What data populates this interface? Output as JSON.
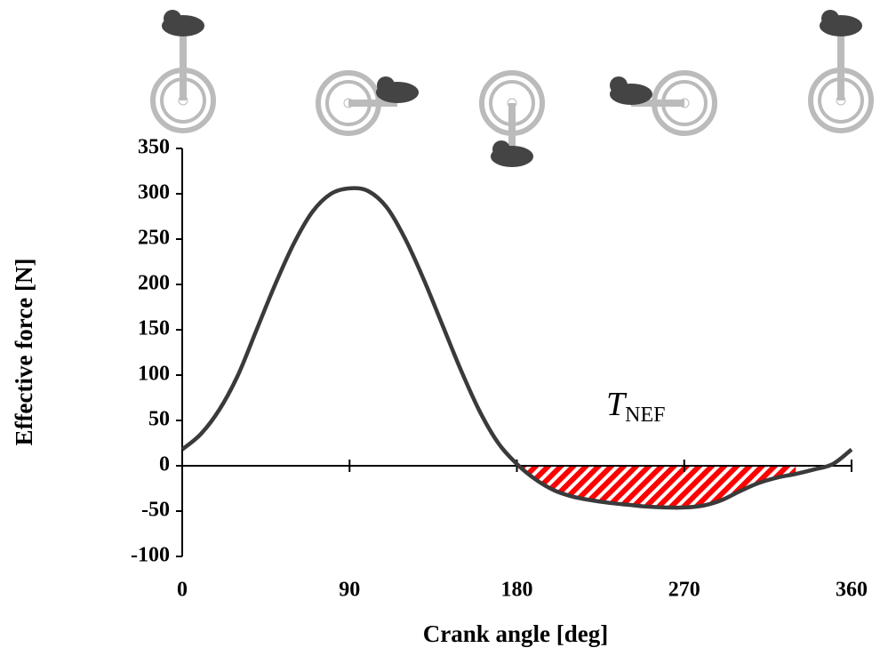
{
  "chart_data": {
    "type": "line",
    "x_label": "Crank angle [deg]",
    "y_label": "Effective force [N]",
    "x": [
      0,
      10,
      20,
      30,
      40,
      50,
      60,
      70,
      80,
      90,
      100,
      110,
      120,
      130,
      140,
      150,
      160,
      170,
      180,
      190,
      200,
      210,
      220,
      230,
      240,
      250,
      260,
      270,
      280,
      290,
      300,
      310,
      320,
      330,
      340,
      350,
      360
    ],
    "series": [
      {
        "color": "#3a3a3a",
        "values": [
          18,
          35,
          62,
          100,
          150,
          200,
          245,
          280,
          300,
          306,
          303,
          285,
          250,
          205,
          155,
          105,
          60,
          25,
          2,
          -15,
          -27,
          -34,
          -38,
          -41,
          -43,
          -45,
          -46,
          -46,
          -44,
          -38,
          -28,
          -19,
          -13,
          -9,
          -4,
          2,
          18
        ]
      }
    ],
    "shade": {
      "xmin": 183,
      "xmax": 330,
      "color": "#ff0000"
    },
    "annotation": {
      "text": "T",
      "subscript": "NEF"
    },
    "xlim": [
      0,
      360
    ],
    "xticks": [
      0,
      90,
      180,
      270,
      360
    ],
    "ylim": [
      -100,
      350
    ],
    "yticks": [
      -100,
      -50,
      0,
      50,
      100,
      150,
      200,
      250,
      300,
      350
    ]
  }
}
